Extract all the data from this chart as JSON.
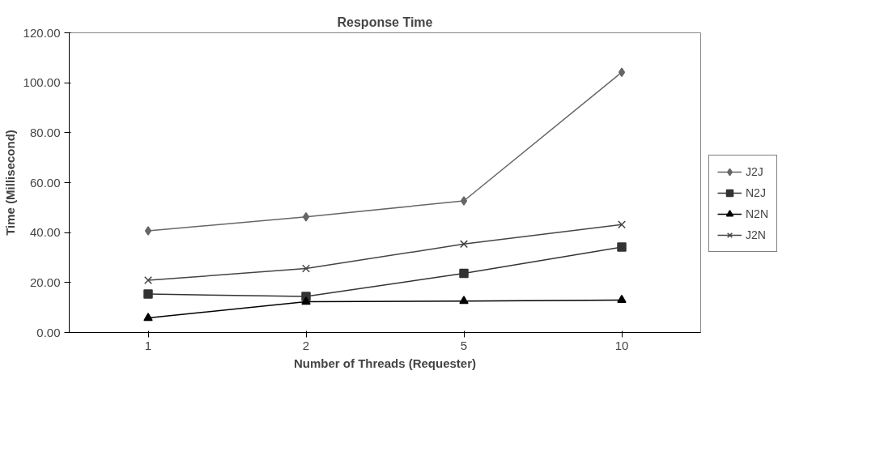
{
  "chart_data": {
    "type": "line",
    "title": "Response Time",
    "xlabel": "Number of Threads (Requester)",
    "ylabel": "Time (Millisecond)",
    "categories": [
      "1",
      "2",
      "5",
      "10"
    ],
    "series": [
      {
        "name": "J2J",
        "color": "#666666",
        "marker": "diamond",
        "values": [
          40.7,
          46.3,
          52.7,
          104.2
        ]
      },
      {
        "name": "N2J",
        "color": "#333333",
        "marker": "square",
        "values": [
          15.4,
          14.4,
          23.7,
          34.2
        ]
      },
      {
        "name": "N2N",
        "color": "#000000",
        "marker": "triangle",
        "values": [
          5.8,
          12.3,
          12.6,
          13.0
        ]
      },
      {
        "name": "J2N",
        "color": "#444444",
        "marker": "cross",
        "values": [
          20.9,
          25.6,
          35.4,
          43.2
        ]
      }
    ],
    "ylim": [
      0,
      120
    ],
    "yticks": [
      {
        "value": 0,
        "label": "0.00"
      },
      {
        "value": 20,
        "label": "20.00"
      },
      {
        "value": 40,
        "label": "40.00"
      },
      {
        "value": 60,
        "label": "60.00"
      },
      {
        "value": 80,
        "label": "80.00"
      },
      {
        "value": 100,
        "label": "100.00"
      },
      {
        "value": 120,
        "label": "120.00"
      }
    ],
    "grid": false,
    "legend": "right",
    "line_style": "solid"
  }
}
